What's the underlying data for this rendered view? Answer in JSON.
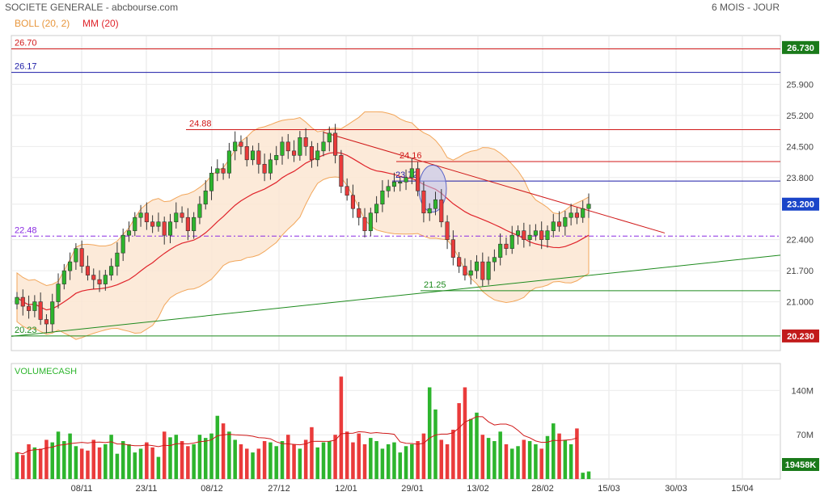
{
  "header": {
    "title": "SOCIETE GENERALE - abcbourse.com",
    "period": "6 MOIS - JOUR",
    "boll_label": "BOLL (20, 2)",
    "mm_label": "MM (20)",
    "volume_label": "VOLUMECASH"
  },
  "colors": {
    "up": "#2db52d",
    "down": "#ea3b3b",
    "boll_fill": "#fce6d2",
    "boll_line": "#f2a65a",
    "mm": "#e0242b",
    "blue": "#1a1aa6",
    "green_line": "#1d8a1d",
    "purple": "#8a2be2"
  },
  "chart_data": [
    {
      "type": "candlestick",
      "y_ticks": [
        "26.730",
        "25.900",
        "25.200",
        "24.500",
        "23.800",
        "23.200",
        "22.400",
        "21.700",
        "21.000",
        "20.230"
      ],
      "y_range": [
        20.0,
        27.0
      ],
      "x_ticks": [
        "08/11",
        "23/11",
        "08/12",
        "27/12",
        "12/01",
        "29/01",
        "13/02",
        "28/02",
        "15/03",
        "30/03",
        "15/04"
      ],
      "levels": [
        {
          "label": "26.70",
          "value": 26.7,
          "color": "red"
        },
        {
          "label": "26.17",
          "value": 26.17,
          "color": "blue"
        },
        {
          "label": "24.88",
          "value": 24.88,
          "color": "red"
        },
        {
          "label": "24.16",
          "value": 24.16,
          "color": "red"
        },
        {
          "label": "23.72",
          "value": 23.72,
          "color": "blue"
        },
        {
          "label": "22.48",
          "value": 22.48,
          "color": "purple"
        },
        {
          "label": "21.25",
          "value": 21.25,
          "color": "green"
        },
        {
          "label": "20.23",
          "value": 20.23,
          "color": "green"
        }
      ],
      "price_badges": [
        {
          "label": "26.730",
          "value": 26.73,
          "color": "green"
        },
        {
          "label": "23.200",
          "value": 23.2,
          "color": "blue"
        },
        {
          "label": "20.230",
          "value": 20.23,
          "color": "red"
        }
      ],
      "closes": [
        21.1,
        20.9,
        20.8,
        21.0,
        20.6,
        20.5,
        21.0,
        21.4,
        21.7,
        21.9,
        22.2,
        21.8,
        21.6,
        21.5,
        21.4,
        21.6,
        21.8,
        22.1,
        22.5,
        22.6,
        22.9,
        23.0,
        22.8,
        22.7,
        22.8,
        22.5,
        22.8,
        23.0,
        22.9,
        22.6,
        22.9,
        23.2,
        23.5,
        23.9,
        24.0,
        23.9,
        24.4,
        24.6,
        24.5,
        24.2,
        24.4,
        24.1,
        23.9,
        24.2,
        24.3,
        24.6,
        24.4,
        24.3,
        24.7,
        24.5,
        24.2,
        24.4,
        24.6,
        24.8,
        24.3,
        23.6,
        23.4,
        23.1,
        22.9,
        22.6,
        23.0,
        23.2,
        23.5,
        23.6,
        23.7,
        23.7,
        23.8,
        24.0,
        23.5,
        23.0,
        23.1,
        23.3,
        22.8,
        22.4,
        22.0,
        21.8,
        21.6,
        21.7,
        21.9,
        21.5,
        21.9,
        22.0,
        22.3,
        22.2,
        22.5,
        22.6,
        22.4,
        22.5,
        22.6,
        22.4,
        22.6,
        22.8,
        22.7,
        22.9,
        23.0,
        22.9,
        23.1,
        23.2
      ],
      "volumes_m": [
        42,
        38,
        55,
        50,
        48,
        62,
        58,
        75,
        60,
        72,
        52,
        48,
        45,
        62,
        50,
        55,
        70,
        40,
        60,
        55,
        42,
        48,
        58,
        50,
        35,
        75,
        66,
        70,
        60,
        52,
        55,
        70,
        65,
        72,
        100,
        88,
        75,
        62,
        55,
        48,
        42,
        48,
        60,
        58,
        52,
        60,
        70,
        55,
        48,
        62,
        82,
        50,
        58,
        60,
        70,
        162,
        75,
        58,
        72,
        55,
        65,
        60,
        48,
        55,
        58,
        42,
        52,
        55,
        60,
        72,
        145,
        110,
        62,
        55,
        78,
        120,
        145,
        95,
        105,
        70,
        65,
        60,
        75,
        55,
        48,
        52,
        62,
        60,
        55,
        48,
        68,
        88,
        72,
        62,
        55,
        80,
        10,
        12
      ],
      "volume_ticks": [
        "140M",
        "70M"
      ],
      "volume_badge": "19458K"
    }
  ]
}
